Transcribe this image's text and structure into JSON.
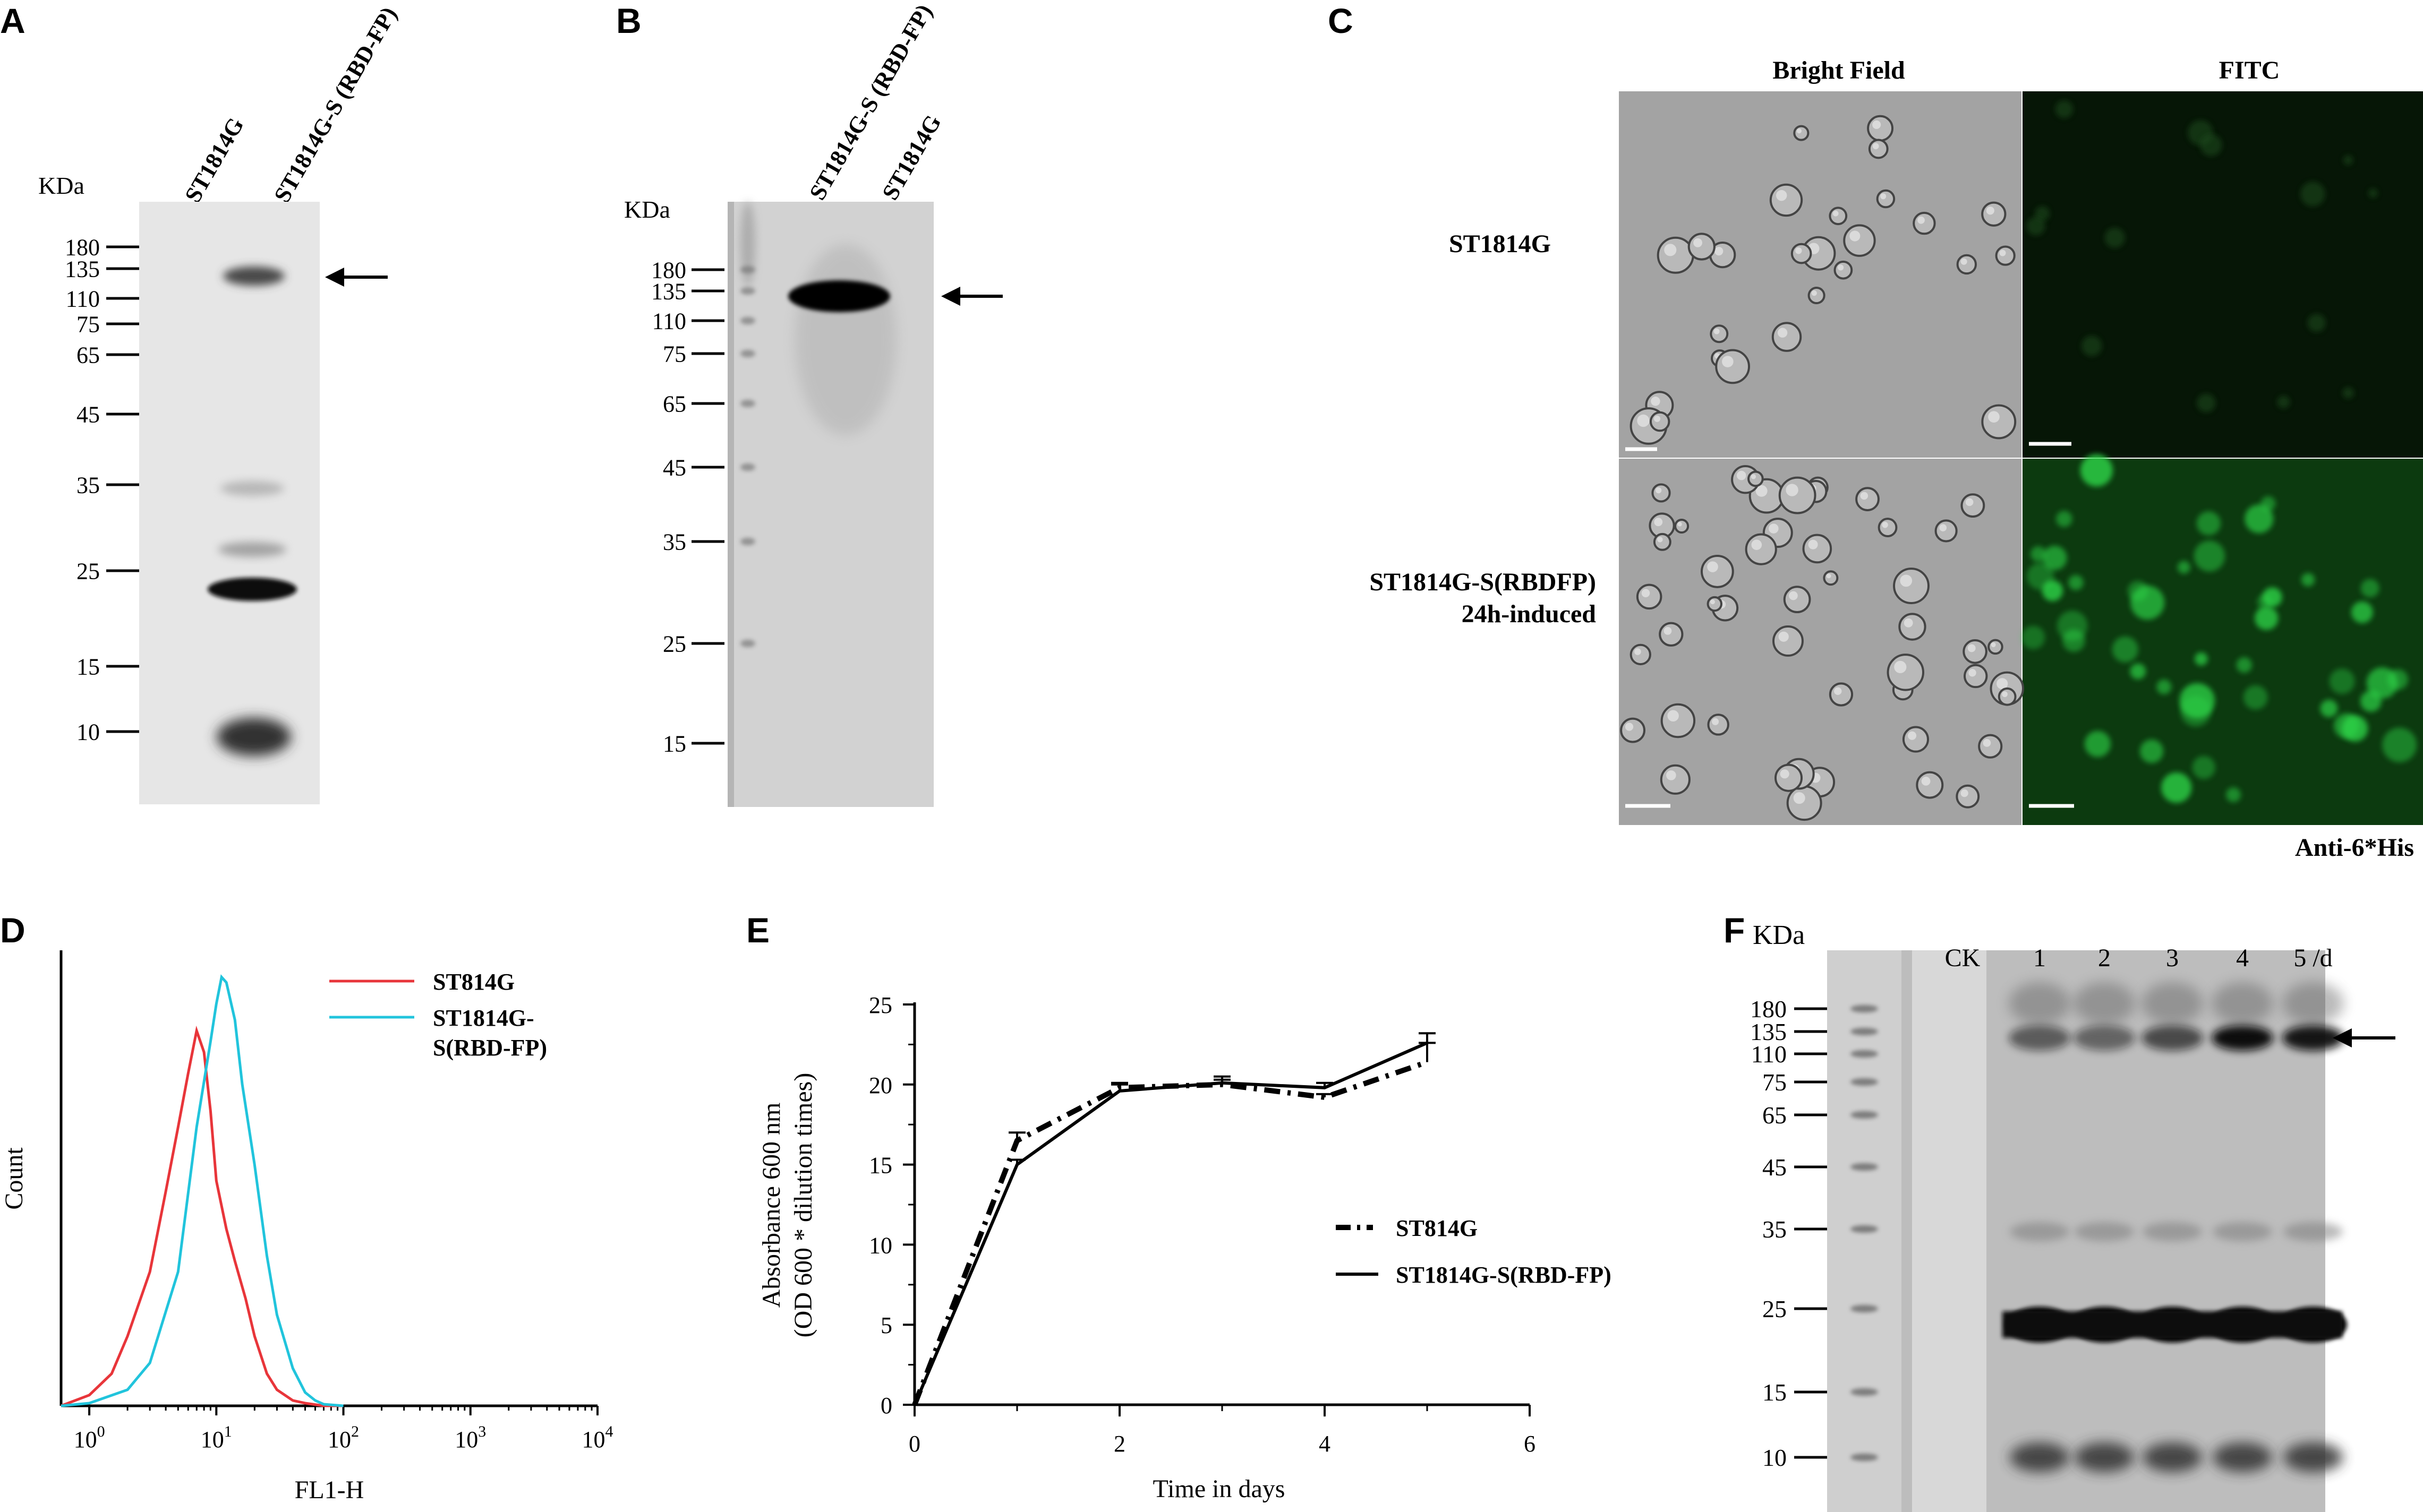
{
  "panels": {
    "A": "A",
    "B": "B",
    "C": "C",
    "D": "D",
    "E": "E",
    "F": "F"
  },
  "blotA": {
    "kda_label": "KDa",
    "lanes": [
      "ST1814G",
      "ST1814G-S (RBD-FP)"
    ],
    "markers": [
      "180",
      "135",
      "110",
      "75",
      "65",
      "45",
      "35",
      "25",
      "15",
      "10"
    ]
  },
  "blotB": {
    "kda_label": "KDa",
    "lanes": [
      "ST1814G-S (RBD-FP)",
      "ST1814G"
    ],
    "markers": [
      "180",
      "135",
      "110",
      "75",
      "65",
      "45",
      "35",
      "25",
      "15"
    ]
  },
  "microscopy": {
    "col_bright": "Bright Field",
    "col_fitc": "FITC",
    "row1": "ST1814G",
    "row2_line1": "ST1814G-S(RBDFP)",
    "row2_line2": "24h-induced",
    "antibody": "Anti-6*His"
  },
  "blotF": {
    "kda_label": "KDa",
    "lanes": [
      "CK",
      "1",
      "2",
      "3",
      "4",
      "5 /d"
    ],
    "markers": [
      "180",
      "135",
      "110",
      "75",
      "65",
      "45",
      "35",
      "25",
      "15",
      "10"
    ]
  },
  "colors": {
    "red": "#e8353a",
    "cyan": "#21c4dc",
    "green": "#2fd84a"
  },
  "chart_data": [
    {
      "type": "line",
      "title": "",
      "xlabel": "FL1-H",
      "ylabel": "Count",
      "xscale": "log",
      "xlim": [
        0.6,
        10000
      ],
      "xticks": [
        "10^0",
        "10^1",
        "10^2",
        "10^3",
        "10^4"
      ],
      "legend": "top-right",
      "series": [
        {
          "name": "ST814G",
          "x": [
            0.6,
            1.0,
            1.5,
            2.0,
            3.0,
            4.0,
            5.0,
            6.0,
            7.0,
            8.0,
            9.0,
            10.0,
            12.0,
            14.0,
            17.0,
            20.0,
            25.0,
            30.0,
            40.0,
            50.0,
            70.0,
            100.0
          ],
          "y": [
            0,
            2,
            6,
            13,
            25,
            40,
            52,
            62,
            70,
            66,
            55,
            42,
            33,
            27,
            20,
            13,
            6,
            3,
            1,
            0.5,
            0,
            0
          ]
        },
        {
          "name": "ST1814G-S(RBD-FP)",
          "x": [
            0.6,
            1.0,
            2.0,
            3.0,
            5.0,
            7.0,
            9.0,
            10.0,
            11.0,
            12.0,
            14.0,
            16.0,
            20.0,
            25.0,
            30.0,
            40.0,
            50.0,
            60.0,
            70.0,
            100.0
          ],
          "y": [
            0,
            0.5,
            3,
            8,
            25,
            52,
            68,
            75,
            80,
            79,
            72,
            60,
            45,
            28,
            17,
            7,
            2.5,
            1,
            0.3,
            0
          ]
        }
      ]
    },
    {
      "type": "line",
      "title": "",
      "xlabel": "Time in days",
      "ylabel": "Absorbance 600 nm",
      "ylabel2": "(OD 600 * dilution times)",
      "xlim": [
        0,
        6
      ],
      "ylim": [
        0,
        25
      ],
      "xticks": [
        "0",
        "2",
        "4",
        "6"
      ],
      "yticks": [
        "0",
        "5",
        "10",
        "15",
        "20",
        "25"
      ],
      "legend": "right",
      "series": [
        {
          "name": "ST814G",
          "style": "dash-dot",
          "x": [
            0,
            1,
            2,
            3,
            4,
            5
          ],
          "y": [
            0,
            16.5,
            19.8,
            20.0,
            19.2,
            21.4
          ],
          "err": [
            0,
            0.5,
            0.3,
            0.3,
            0.2,
            1.2
          ]
        },
        {
          "name": "ST1814G-S(RBD-FP)",
          "style": "solid",
          "x": [
            0,
            1,
            2,
            3,
            4,
            5
          ],
          "y": [
            0,
            15.0,
            19.6,
            20.1,
            19.8,
            22.6
          ],
          "err": [
            0,
            0.3,
            0.4,
            0.4,
            0.3,
            0.6
          ]
        }
      ]
    }
  ]
}
